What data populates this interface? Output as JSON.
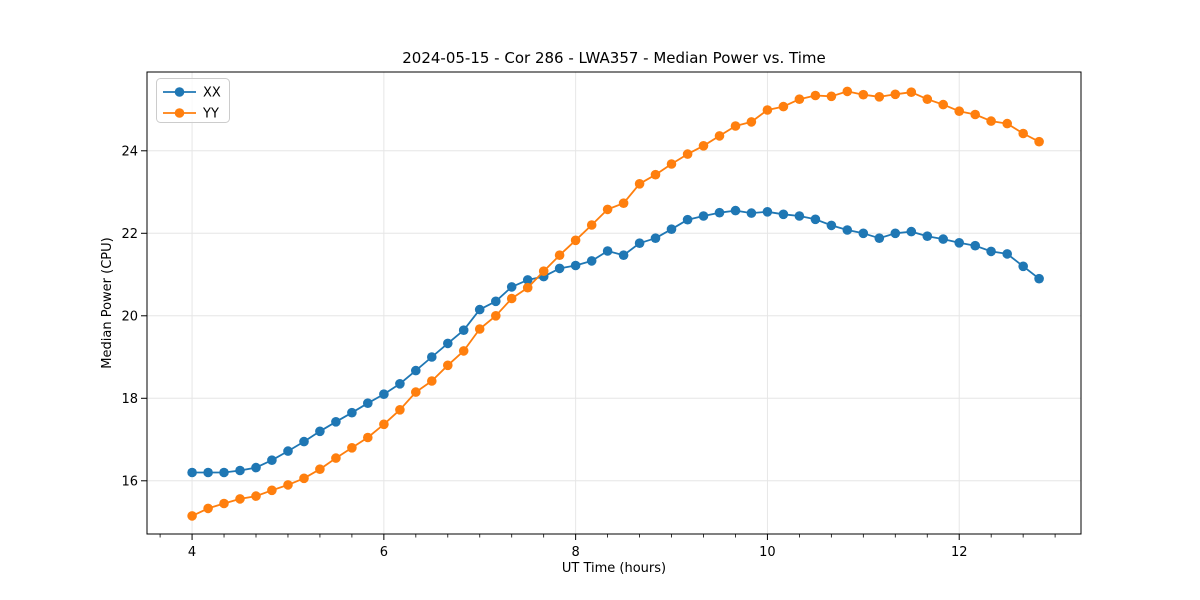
{
  "chart_data": {
    "type": "line",
    "title": "2024-05-15 - Cor 286 - LWA357 - Median Power vs. Time",
    "xlabel": "UT Time (hours)",
    "ylabel": "Median Power (CPU)",
    "xlim": [
      3.53,
      13.27
    ],
    "ylim": [
      14.71,
      25.91
    ],
    "x_major_ticks": [
      4,
      6,
      8,
      10,
      12
    ],
    "x_minor_tick_step": 0.3333,
    "y_major_ticks": [
      16,
      18,
      20,
      22,
      24
    ],
    "grid": true,
    "legend": {
      "position": "upper-left",
      "entries": [
        "XX",
        "YY"
      ]
    },
    "x": [
      4.0,
      4.167,
      4.333,
      4.5,
      4.667,
      4.833,
      5.0,
      5.167,
      5.333,
      5.5,
      5.667,
      5.833,
      6.0,
      6.167,
      6.333,
      6.5,
      6.667,
      6.833,
      7.0,
      7.167,
      7.333,
      7.5,
      7.667,
      7.833,
      8.0,
      8.167,
      8.333,
      8.5,
      8.667,
      8.833,
      9.0,
      9.167,
      9.333,
      9.5,
      9.667,
      9.833,
      10.0,
      10.167,
      10.333,
      10.5,
      10.667,
      10.833,
      11.0,
      11.167,
      11.333,
      11.5,
      11.667,
      11.833,
      12.0,
      12.167,
      12.333,
      12.5,
      12.667,
      12.833
    ],
    "series": [
      {
        "name": "XX",
        "color": "#1f77b4",
        "marker": "circle",
        "values": [
          16.2,
          16.2,
          16.2,
          16.25,
          16.32,
          16.5,
          16.72,
          16.95,
          17.2,
          17.43,
          17.65,
          17.88,
          18.1,
          18.35,
          18.67,
          19.0,
          19.33,
          19.65,
          20.15,
          20.35,
          20.7,
          20.87,
          20.95,
          21.15,
          21.22,
          21.33,
          21.57,
          21.47,
          21.76,
          21.88,
          22.1,
          22.33,
          22.42,
          22.5,
          22.55,
          22.49,
          22.52,
          22.46,
          22.42,
          22.34,
          22.19,
          22.08,
          22.0,
          21.88,
          22.0,
          22.04,
          21.93,
          21.86,
          21.77,
          21.7,
          21.56,
          21.5,
          21.2,
          20.9
        ]
      },
      {
        "name": "YY",
        "color": "#ff7f0e",
        "marker": "circle",
        "values": [
          15.15,
          15.33,
          15.45,
          15.56,
          15.63,
          15.77,
          15.9,
          16.06,
          16.28,
          16.55,
          16.8,
          17.05,
          17.37,
          17.72,
          18.15,
          18.42,
          18.8,
          19.15,
          19.68,
          20.0,
          20.42,
          20.68,
          21.08,
          21.47,
          21.83,
          22.2,
          22.58,
          22.73,
          23.2,
          23.42,
          23.68,
          23.92,
          24.12,
          24.36,
          24.6,
          24.7,
          24.99,
          25.07,
          25.25,
          25.34,
          25.32,
          25.44,
          25.36,
          25.31,
          25.37,
          25.42,
          25.25,
          25.12,
          24.96,
          24.88,
          24.72,
          24.66,
          24.42,
          24.22
        ]
      }
    ]
  },
  "style": {
    "grid_color": "#e6e6e6",
    "spine_color": "#000000",
    "background": "#ffffff",
    "legend_border": "#cccccc"
  }
}
